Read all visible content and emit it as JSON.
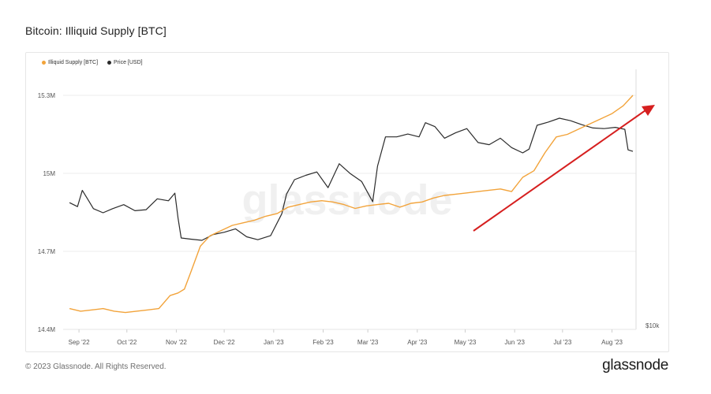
{
  "title": "Bitcoin: Illiquid Supply [BTC]",
  "footer": "© 2023 Glassnode. All Rights Reserved.",
  "brand": "glassnode",
  "watermark": "glassnode",
  "colors": {
    "supply": "#f2a33a",
    "price": "#2b2b2b",
    "arrow": "#d61f1f",
    "grid": "#ececec"
  },
  "chart_data": {
    "type": "line",
    "title": "Bitcoin: Illiquid Supply [BTC]",
    "legend": [
      "Illiquid Supply [BTC]",
      "Price [USD]"
    ],
    "legend_position": "top-left",
    "x_tick_labels": [
      "Sep '22",
      "Oct '22",
      "Nov '22",
      "Dec '22",
      "Jan '23",
      "Feb '23",
      "Mar '23",
      "Apr '23",
      "May '23",
      "Jun '23",
      "Jul '23",
      "Aug '23"
    ],
    "left_axis": {
      "ticks": [
        "15.3M",
        "15M",
        "14.7M",
        "14.4M"
      ],
      "tick_values": [
        15300000,
        15000000,
        14700000,
        14400000
      ],
      "ylim": [
        14400000,
        15400000
      ]
    },
    "right_axis": {
      "scale": "log",
      "ticks": [
        "$10k"
      ],
      "tick_values": [
        10000
      ]
    },
    "grid": true,
    "series": [
      {
        "name": "Illiquid Supply [BTC]",
        "axis": "left",
        "x": [
          "2022-09-01",
          "2022-09-08",
          "2022-09-15",
          "2022-09-22",
          "2022-09-29",
          "2022-10-06",
          "2022-10-13",
          "2022-10-20",
          "2022-10-27",
          "2022-11-03",
          "2022-11-08",
          "2022-11-12",
          "2022-11-16",
          "2022-11-22",
          "2022-11-28",
          "2022-12-05",
          "2022-12-12",
          "2022-12-19",
          "2022-12-26",
          "2023-01-02",
          "2023-01-09",
          "2023-01-16",
          "2023-01-23",
          "2023-01-30",
          "2023-02-06",
          "2023-02-13",
          "2023-02-20",
          "2023-02-27",
          "2023-03-06",
          "2023-03-13",
          "2023-03-20",
          "2023-03-27",
          "2023-04-03",
          "2023-04-10",
          "2023-04-17",
          "2023-04-24",
          "2023-05-01",
          "2023-05-08",
          "2023-05-15",
          "2023-05-22",
          "2023-05-29",
          "2023-06-05",
          "2023-06-12",
          "2023-06-19",
          "2023-06-26",
          "2023-07-03",
          "2023-07-10",
          "2023-07-17",
          "2023-07-24",
          "2023-07-31",
          "2023-08-07",
          "2023-08-14",
          "2023-08-20"
        ],
        "y": [
          14480000,
          14470000,
          14475000,
          14480000,
          14470000,
          14465000,
          14470000,
          14475000,
          14480000,
          14530000,
          14540000,
          14555000,
          14620000,
          14720000,
          14760000,
          14780000,
          14800000,
          14810000,
          14820000,
          14835000,
          14845000,
          14870000,
          14880000,
          14890000,
          14895000,
          14890000,
          14880000,
          14865000,
          14875000,
          14880000,
          14885000,
          14870000,
          14885000,
          14890000,
          14905000,
          14915000,
          14920000,
          14925000,
          14930000,
          14935000,
          14940000,
          14930000,
          14985000,
          15010000,
          15080000,
          15140000,
          15150000,
          15170000,
          15190000,
          15210000,
          15230000,
          15260000,
          15300000
        ]
      },
      {
        "name": "Price [USD]",
        "axis": "right",
        "x": [
          "2022-09-01",
          "2022-09-06",
          "2022-09-09",
          "2022-09-13",
          "2022-09-16",
          "2022-09-22",
          "2022-09-28",
          "2022-10-05",
          "2022-10-12",
          "2022-10-19",
          "2022-10-26",
          "2022-11-02",
          "2022-11-06",
          "2022-11-08",
          "2022-11-10",
          "2022-11-16",
          "2022-11-23",
          "2022-11-30",
          "2022-12-07",
          "2022-12-14",
          "2022-12-21",
          "2022-12-28",
          "2023-01-05",
          "2023-01-12",
          "2023-01-15",
          "2023-01-20",
          "2023-01-27",
          "2023-02-03",
          "2023-02-10",
          "2023-02-17",
          "2023-02-24",
          "2023-03-03",
          "2023-03-10",
          "2023-03-13",
          "2023-03-18",
          "2023-03-25",
          "2023-04-01",
          "2023-04-08",
          "2023-04-12",
          "2023-04-18",
          "2023-04-24",
          "2023-05-01",
          "2023-05-08",
          "2023-05-15",
          "2023-05-22",
          "2023-05-29",
          "2023-06-05",
          "2023-06-12",
          "2023-06-16",
          "2023-06-21",
          "2023-06-28",
          "2023-07-05",
          "2023-07-12",
          "2023-07-19",
          "2023-07-26",
          "2023-08-02",
          "2023-08-09",
          "2023-08-15",
          "2023-08-17",
          "2023-08-20"
        ],
        "y": [
          20000,
          19600,
          21300,
          20200,
          19400,
          19000,
          19400,
          19800,
          19200,
          19300,
          20400,
          20200,
          21000,
          18500,
          16700,
          16600,
          16500,
          17000,
          17200,
          17500,
          16800,
          16550,
          16900,
          18900,
          20900,
          22500,
          23000,
          23400,
          21600,
          24400,
          23200,
          22300,
          20100,
          24100,
          28000,
          28000,
          28400,
          28000,
          30100,
          29500,
          27800,
          28600,
          29200,
          27200,
          26900,
          27800,
          26500,
          25800,
          26300,
          29700,
          30200,
          30800,
          30400,
          29800,
          29300,
          29200,
          29400,
          29100,
          26200,
          26000
        ]
      }
    ]
  }
}
